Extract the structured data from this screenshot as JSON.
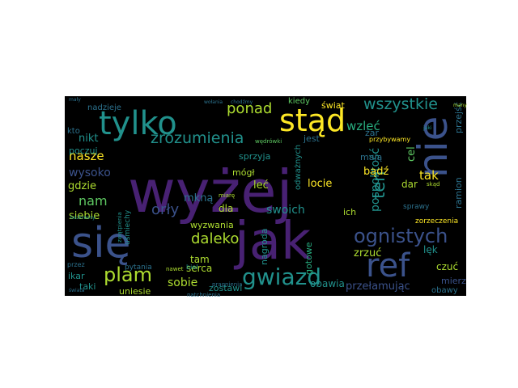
{
  "colors": {
    "page_background": "#ffffff",
    "cloud_background": "#000000",
    "palette": [
      "#482173",
      "#3b528b",
      "#2c728e",
      "#21918c",
      "#28ae80",
      "#5ec962",
      "#addc30",
      "#fde725",
      "#440154"
    ]
  },
  "word_cloud": {
    "words": [
      {
        "text": "wyżej",
        "color": "#482173"
      },
      {
        "text": "jak",
        "color": "#482173"
      },
      {
        "text": "się",
        "color": "#3b528b"
      },
      {
        "text": "nie",
        "color": "#3b528b"
      },
      {
        "text": "tylko",
        "color": "#21918c"
      },
      {
        "text": "stąd",
        "color": "#fde725"
      },
      {
        "text": "ref",
        "color": "#3b528b"
      },
      {
        "text": "gwiazd",
        "color": "#21918c"
      },
      {
        "text": "plam",
        "color": "#addc30"
      },
      {
        "text": "ognistych",
        "color": "#3b528b"
      },
      {
        "text": "zrozumienia",
        "color": "#21918c"
      },
      {
        "text": "wszystkie",
        "color": "#21918c"
      },
      {
        "text": "ponad",
        "color": "#addc30"
      },
      {
        "text": "daleko",
        "color": "#addc30"
      },
      {
        "text": "ten",
        "color": "#21918c"
      },
      {
        "text": "nasze",
        "color": "#fde725"
      },
      {
        "text": "wysoko",
        "color": "#3b528b"
      },
      {
        "text": "orły",
        "color": "#3b528b"
      },
      {
        "text": "nam",
        "color": "#5ec962"
      },
      {
        "text": "sobie",
        "color": "#addc30"
      },
      {
        "text": "nikt",
        "color": "#21918c"
      },
      {
        "text": "tak",
        "color": "#fde725"
      },
      {
        "text": "wzleć",
        "color": "#28ae80"
      },
      {
        "text": "świat",
        "color": "#fde725"
      },
      {
        "text": "kiedy",
        "color": "#5ec962"
      },
      {
        "text": "swoich",
        "color": "#21918c"
      },
      {
        "text": "siebie",
        "color": "#addc30"
      },
      {
        "text": "gdzie",
        "color": "#addc30"
      },
      {
        "text": "pospolitość",
        "color": "#21918c"
      },
      {
        "text": "zrzuć",
        "color": "#addc30"
      },
      {
        "text": "ramion",
        "color": "#2c728e"
      },
      {
        "text": "przejść",
        "color": "#2c728e"
      },
      {
        "text": "locie",
        "color": "#fde725"
      },
      {
        "text": "bądź",
        "color": "#fde725"
      },
      {
        "text": "cel",
        "color": "#5ec962"
      },
      {
        "text": "mają",
        "color": "#2c728e"
      },
      {
        "text": "żar",
        "color": "#2c728e"
      },
      {
        "text": "dar",
        "color": "#addc30"
      },
      {
        "text": "lęk",
        "color": "#21918c"
      },
      {
        "text": "czuć",
        "color": "#addc30"
      },
      {
        "text": "mierz",
        "color": "#3b528b"
      },
      {
        "text": "obawia",
        "color": "#21918c"
      },
      {
        "text": "przełamując",
        "color": "#3b528b"
      },
      {
        "text": "obawy",
        "color": "#2c728e"
      },
      {
        "text": "zorzeczenia",
        "color": "#fde725"
      },
      {
        "text": "sprawy",
        "color": "#2c728e"
      },
      {
        "text": "ich",
        "color": "#addc30"
      },
      {
        "text": "gotowe",
        "color": "#28ae80"
      },
      {
        "text": "nagroda",
        "color": "#21918c"
      },
      {
        "text": "wyzwania",
        "color": "#addc30"
      },
      {
        "text": "serca",
        "color": "#addc30"
      },
      {
        "text": "tam",
        "color": "#addc30"
      },
      {
        "text": "zostawi",
        "color": "#21918c"
      },
      {
        "text": "dla",
        "color": "#addc30"
      },
      {
        "text": "mkną",
        "color": "#2c728e"
      },
      {
        "text": "mógł",
        "color": "#addc30"
      },
      {
        "text": "leć",
        "color": "#addc30"
      },
      {
        "text": "jest",
        "color": "#2c728e"
      },
      {
        "text": "sprzyja",
        "color": "#21918c"
      },
      {
        "text": "poczuj",
        "color": "#21918c"
      },
      {
        "text": "kto",
        "color": "#2c728e"
      },
      {
        "text": "nadzieje",
        "color": "#2c728e"
      },
      {
        "text": "ikar",
        "color": "#21918c"
      },
      {
        "text": "taki",
        "color": "#21918c"
      },
      {
        "text": "uniesie",
        "color": "#addc30"
      },
      {
        "text": "pytania",
        "color": "#2c728e"
      },
      {
        "text": "przez",
        "color": "#2c728e"
      },
      {
        "text": "świata",
        "color": "#2c728e"
      },
      {
        "text": "nawet",
        "color": "#addc30"
      },
      {
        "text": "przybywamy",
        "color": "#fde725"
      },
      {
        "text": "jaki",
        "color": "#21918c"
      },
      {
        "text": "skąd",
        "color": "#addc30"
      },
      {
        "text": "mały",
        "color": "#2c728e"
      },
      {
        "text": "many",
        "color": "#addc30"
      },
      {
        "text": "odważnych",
        "color": "#21918c"
      },
      {
        "text": "wędrówki",
        "color": "#5ec962"
      },
      {
        "text": "uśmiechy",
        "color": "#21918c"
      },
      {
        "text": "biel",
        "color": "#21918c"
      },
      {
        "text": "miarę",
        "color": "#addc30"
      },
      {
        "text": "wołania",
        "color": "#2c728e"
      },
      {
        "text": "chodźmy",
        "color": "#2c728e"
      },
      {
        "text": "bezkresny",
        "color": "#21918c"
      },
      {
        "text": "zwątpienia",
        "color": "#21918c"
      },
      {
        "text": "pragnienia",
        "color": "#2c728e"
      },
      {
        "text": "natchnienia",
        "color": "#2c728e"
      }
    ]
  }
}
